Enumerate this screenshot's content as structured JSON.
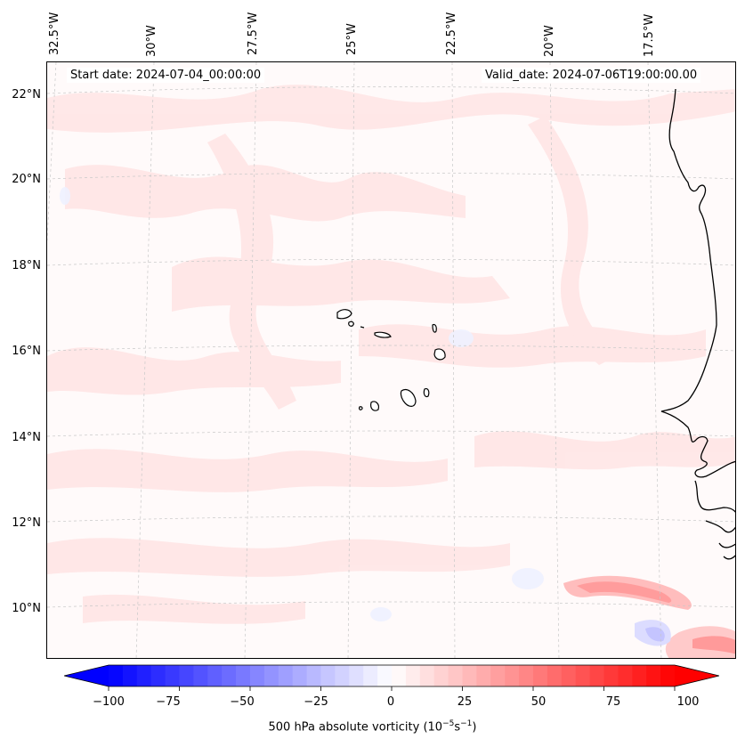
{
  "map": {
    "start_date": "Start date: 2024-07-04_00:00:00",
    "valid_date": "Valid_date: 2024-07-06T19:00:00.00",
    "lat_labels": [
      "22°N",
      "20°N",
      "18°N",
      "16°N",
      "14°N",
      "12°N",
      "10°N"
    ],
    "lon_labels": [
      "32.5°W",
      "30°W",
      "27.5°W",
      "25°W",
      "22.5°W",
      "20°W",
      "17.5°W"
    ],
    "variable": "500 hPa absolute vorticity",
    "units_base": "(10",
    "units_exp1": "−5",
    "units_mid": "s",
    "units_exp2": "−1",
    "units_end": ")"
  },
  "colorbar": {
    "min": -100,
    "max": 100,
    "step": 5,
    "tick_labels": [
      "−100",
      "−75",
      "−50",
      "−25",
      "0",
      "25",
      "50",
      "75",
      "100"
    ],
    "color_low": "#0000ff",
    "color_mid": "#ffffff",
    "color_high": "#ff0000"
  }
}
